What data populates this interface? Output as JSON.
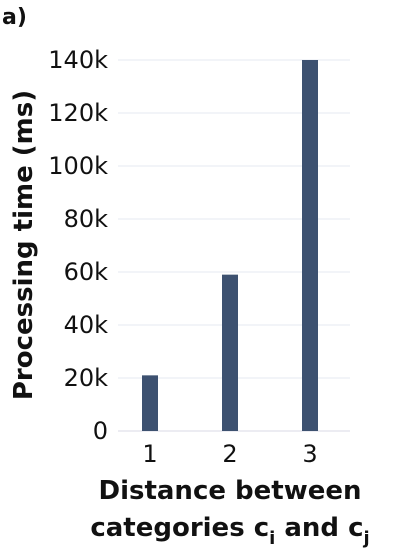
{
  "panel_label": "a)",
  "chart_data": {
    "type": "bar",
    "categories": [
      "1",
      "2",
      "3"
    ],
    "values": [
      21000,
      59000,
      140000
    ],
    "ylabel": "Processing time (ms)",
    "xlabel_line1": "Distance between",
    "xlabel_line2": {
      "prefix": "categories c",
      "sub1": "i",
      "middle": " and c",
      "sub2": "j"
    },
    "ylim": [
      0,
      140000
    ],
    "yticks": [
      {
        "value": 0,
        "label": "0"
      },
      {
        "value": 20000,
        "label": "20k"
      },
      {
        "value": 40000,
        "label": "40k"
      },
      {
        "value": 60000,
        "label": "60k"
      },
      {
        "value": 80000,
        "label": "80k"
      },
      {
        "value": 100000,
        "label": "100k"
      },
      {
        "value": 120000,
        "label": "120k"
      },
      {
        "value": 140000,
        "label": "140k"
      }
    ],
    "bar_color": "#3d5170",
    "grid": true,
    "legend": "none"
  }
}
